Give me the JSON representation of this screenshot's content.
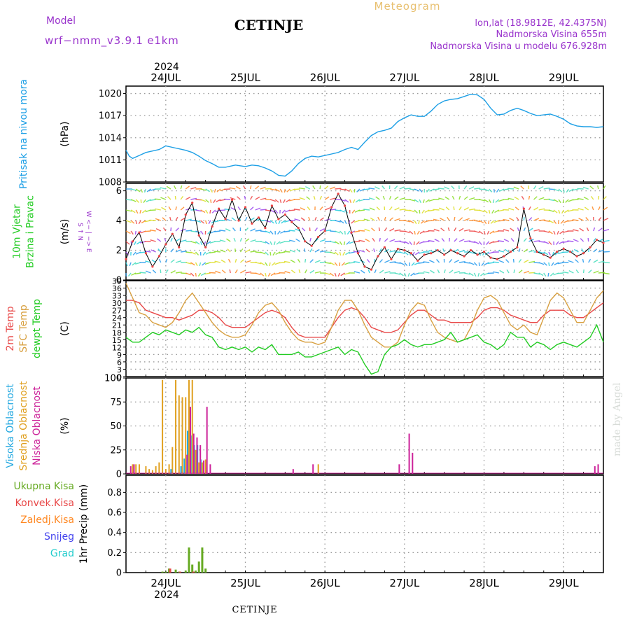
{
  "header": {
    "model_label": "Model",
    "model_value": "wrf−nmm_v3.9.1 e1km",
    "title": "CETINJE",
    "meteogram_label": "Meteogram",
    "coords": "lon,lat (18.9812E, 42.4375N)",
    "elevation": "Nadmorska Visina 655m",
    "model_elevation": "Nadmorska Visina u modelu 676.928m"
  },
  "footer": {
    "station": "CETINJE",
    "credit": "made by Angel"
  },
  "colors": {
    "pressure": "#1ea0e6",
    "t2m": "#e84848",
    "sfc": "#d8a040",
    "dewpt": "#22cc22",
    "high_cloud": "#22a8e0",
    "mid_cloud": "#e0a020",
    "low_cloud": "#cc2299",
    "total_precip": "#66aa22",
    "conv_precip": "#e84848",
    "frozen": "#ff8822",
    "snow": "#4444ee",
    "graupel": "#22cccc",
    "grid": "#999999"
  },
  "axis": {
    "year": "2024",
    "days": [
      "24JUL",
      "25JUL",
      "26JUL",
      "27JUL",
      "28JUL",
      "29JUL"
    ]
  },
  "chart_data": [
    {
      "id": "pressure",
      "type": "line",
      "title_lines": [
        "Pritisak na nivou mora"
      ],
      "unit": "(hPa)",
      "ylim": [
        1008,
        1021
      ],
      "yticks": [
        1008,
        1011,
        1014,
        1017,
        1020
      ],
      "xlim": [
        0,
        144
      ],
      "series": [
        {
          "x": [
            0,
            1,
            2,
            4,
            6,
            8,
            10,
            12,
            14,
            16,
            18,
            20,
            22,
            24,
            26,
            28,
            30,
            33,
            36,
            38,
            40,
            42,
            44,
            46,
            48,
            50,
            52,
            54,
            56,
            58,
            60,
            62,
            64,
            66,
            68,
            70,
            72,
            74,
            76,
            78,
            80,
            82,
            84,
            86,
            88,
            90,
            92,
            94,
            96,
            98,
            100,
            102,
            104,
            106,
            108,
            110,
            112,
            114,
            116,
            118,
            120,
            122,
            124,
            126,
            128,
            130,
            132,
            134,
            136,
            138,
            140,
            142,
            144
          ],
          "y": [
            1012.3,
            1011.5,
            1011.2,
            1011.6,
            1012.0,
            1012.2,
            1012.4,
            1012.9,
            1012.7,
            1012.5,
            1012.3,
            1012.0,
            1011.5,
            1010.9,
            1010.5,
            1010.0,
            1010.0,
            1010.3,
            1010.1,
            1010.3,
            1010.2,
            1009.9,
            1009.5,
            1008.9,
            1008.8,
            1009.5,
            1010.5,
            1011.2,
            1011.5,
            1011.4,
            1011.6,
            1011.8,
            1012.0,
            1012.4,
            1012.7,
            1012.4,
            1013.4,
            1014.3,
            1014.8,
            1015.0,
            1015.3,
            1016.2,
            1016.7,
            1017.1,
            1016.9,
            1016.9,
            1017.6,
            1018.5,
            1019.0,
            1019.2,
            1019.3,
            1019.6,
            1019.9,
            1019.8,
            1019.2,
            1018.0,
            1017.1,
            1017.2,
            1017.7,
            1018.0,
            1017.7,
            1017.3,
            1017.0,
            1017.1,
            1017.2,
            1016.9,
            1016.5,
            1015.9,
            1015.6,
            1015.5,
            1015.5,
            1015.4,
            1015.5
          ]
        }
      ]
    },
    {
      "id": "wind",
      "type": "line",
      "title_lines": [
        "10m Vjetar",
        "Brzina i Pravac"
      ],
      "unit": "(m/s)",
      "compass": "W <− | −> E",
      "compass_ns": "S ↑ N",
      "ylim": [
        0,
        6.5
      ],
      "yticks": [
        0,
        2,
        4,
        6
      ],
      "xlim": [
        0,
        144
      ],
      "series": [
        {
          "name": "speed",
          "x": [
            0,
            2,
            4,
            6,
            8,
            10,
            12,
            14,
            16,
            18,
            20,
            22,
            24,
            26,
            28,
            30,
            32,
            34,
            36,
            38,
            40,
            42,
            44,
            46,
            48,
            50,
            52,
            54,
            56,
            58,
            60,
            62,
            64,
            66,
            68,
            70,
            72,
            74,
            76,
            78,
            80,
            82,
            84,
            86,
            88,
            90,
            92,
            94,
            96,
            98,
            100,
            102,
            104,
            106,
            108,
            110,
            112,
            114,
            116,
            118,
            120,
            122,
            124,
            126,
            128,
            130,
            132,
            134,
            136,
            138,
            140,
            142,
            144
          ],
          "y": [
            1.4,
            2.6,
            3.2,
            1.8,
            0.9,
            1.6,
            2.4,
            3.1,
            2.2,
            4.4,
            5.2,
            3.0,
            2.2,
            3.6,
            4.8,
            4.1,
            5.4,
            4.0,
            4.9,
            3.8,
            4.2,
            3.5,
            5.0,
            4.1,
            4.4,
            3.9,
            3.5,
            2.6,
            2.3,
            2.9,
            3.3,
            4.9,
            5.8,
            5.0,
            3.2,
            1.8,
            0.9,
            0.7,
            1.6,
            2.2,
            1.4,
            2.1,
            2.0,
            1.8,
            1.3,
            1.7,
            1.8,
            2.0,
            1.7,
            2.0,
            1.8,
            1.6,
            2.0,
            1.7,
            1.9,
            1.5,
            1.4,
            1.6,
            1.9,
            2.2,
            4.8,
            2.8,
            1.9,
            1.7,
            1.5,
            1.9,
            2.1,
            1.9,
            1.6,
            1.8,
            2.2,
            2.7,
            2.5
          ]
        }
      ]
    },
    {
      "id": "temperature",
      "type": "line",
      "title_lines": [
        "2m Temp",
        "SFC Temp",
        "dewpt Temp"
      ],
      "unit": "(C)",
      "ylim": [
        0,
        39
      ],
      "yticks": [
        0,
        3,
        6,
        9,
        12,
        15,
        18,
        21,
        24,
        27,
        30,
        33,
        36,
        39
      ],
      "xlim": [
        0,
        144
      ],
      "series": [
        {
          "name": "2m Temp",
          "x": [
            0,
            2,
            4,
            6,
            8,
            10,
            12,
            14,
            16,
            18,
            20,
            22,
            24,
            26,
            28,
            30,
            32,
            34,
            36,
            38,
            40,
            42,
            44,
            46,
            48,
            50,
            52,
            54,
            56,
            58,
            60,
            62,
            64,
            66,
            68,
            70,
            72,
            74,
            76,
            78,
            80,
            82,
            84,
            86,
            88,
            90,
            92,
            94,
            96,
            98,
            100,
            102,
            104,
            106,
            108,
            110,
            112,
            114,
            116,
            118,
            120,
            122,
            124,
            126,
            128,
            130,
            132,
            134,
            136,
            138,
            140,
            142,
            144
          ],
          "y": [
            31,
            31,
            30,
            27,
            26,
            25,
            24,
            24,
            23,
            24,
            25,
            27,
            27,
            26,
            24,
            21,
            20,
            20,
            20,
            22,
            24,
            26,
            27,
            26,
            24,
            20,
            17,
            16,
            16,
            16,
            16,
            20,
            24,
            27,
            28,
            27,
            24,
            20,
            19,
            18,
            18,
            19,
            22,
            25,
            27,
            27,
            25,
            23,
            23,
            22,
            22,
            22,
            22,
            24,
            27,
            28,
            28,
            27,
            25,
            24,
            23,
            22,
            22,
            25,
            27,
            27,
            27,
            25,
            24,
            24,
            26,
            28,
            30
          ]
        },
        {
          "name": "SFC Temp",
          "x": [
            0,
            2,
            4,
            6,
            8,
            10,
            12,
            14,
            16,
            18,
            20,
            22,
            24,
            26,
            28,
            30,
            32,
            34,
            36,
            38,
            40,
            42,
            44,
            46,
            48,
            50,
            52,
            54,
            56,
            58,
            60,
            62,
            64,
            66,
            68,
            70,
            72,
            74,
            76,
            78,
            80,
            82,
            84,
            86,
            88,
            90,
            92,
            94,
            96,
            98,
            100,
            102,
            104,
            106,
            108,
            110,
            112,
            114,
            116,
            118,
            120,
            122,
            124,
            126,
            128,
            130,
            132,
            134,
            136,
            138,
            140,
            142,
            144
          ],
          "y": [
            38,
            32,
            26,
            25,
            22,
            21,
            20,
            22,
            26,
            31,
            34,
            30,
            26,
            22,
            19,
            17,
            16,
            16,
            17,
            21,
            26,
            29,
            30,
            27,
            22,
            18,
            15,
            14,
            14,
            13,
            14,
            20,
            27,
            31,
            31,
            27,
            21,
            16,
            14,
            12,
            12,
            14,
            21,
            27,
            30,
            29,
            23,
            18,
            16,
            15,
            14,
            15,
            20,
            27,
            32,
            33,
            31,
            26,
            21,
            19,
            21,
            18,
            17,
            24,
            31,
            34,
            32,
            27,
            22,
            22,
            27,
            32,
            35
          ]
        },
        {
          "name": "dewpt Temp",
          "x": [
            0,
            2,
            4,
            6,
            8,
            10,
            12,
            14,
            16,
            18,
            20,
            22,
            24,
            26,
            28,
            30,
            32,
            34,
            36,
            38,
            40,
            42,
            44,
            46,
            48,
            50,
            52,
            54,
            56,
            58,
            60,
            62,
            64,
            66,
            68,
            70,
            72,
            74,
            76,
            78,
            80,
            82,
            84,
            86,
            88,
            90,
            92,
            94,
            96,
            98,
            100,
            102,
            104,
            106,
            108,
            110,
            112,
            114,
            116,
            118,
            120,
            122,
            124,
            126,
            128,
            130,
            132,
            134,
            136,
            138,
            140,
            142,
            144
          ],
          "y": [
            16,
            14,
            14,
            16,
            18,
            17,
            19,
            18,
            17,
            19,
            18,
            20,
            17,
            16,
            12,
            11,
            12,
            11,
            12,
            10,
            12,
            11,
            13,
            9,
            9,
            9,
            10,
            8,
            8,
            9,
            10,
            11,
            12,
            9,
            11,
            10,
            5,
            1,
            2,
            9,
            12,
            13,
            15,
            13,
            12,
            13,
            13,
            14,
            15,
            18,
            14,
            15,
            16,
            17,
            14,
            13,
            11,
            13,
            18,
            16,
            16,
            12,
            14,
            13,
            11,
            13,
            14,
            13,
            12,
            14,
            16,
            21,
            14
          ]
        }
      ]
    },
    {
      "id": "cloud",
      "type": "bar",
      "title_lines": [
        "Visoka Oblacnost",
        "Srednja Oblacnost",
        "Niska Oblacnost"
      ],
      "unit": "(%)",
      "ylim": [
        0,
        100
      ],
      "yticks": [
        0,
        25,
        50,
        75,
        100
      ],
      "xlim": [
        0,
        144
      ],
      "series": [
        {
          "name": "Visoka Oblacnost",
          "x": [
            14,
            17,
            18,
            19,
            20,
            21,
            22,
            23
          ],
          "y": [
            5,
            8,
            16,
            45,
            40,
            30,
            30,
            15
          ]
        },
        {
          "name": "Srednja Oblacnost",
          "x": [
            2,
            3,
            4,
            6,
            7,
            8,
            9,
            10,
            11,
            12,
            13,
            14,
            15,
            16,
            17,
            18,
            19,
            20,
            21,
            22,
            23,
            24,
            58
          ],
          "y": [
            10,
            10,
            10,
            8,
            5,
            4,
            8,
            12,
            98,
            5,
            10,
            28,
            98,
            82,
            80,
            80,
            98,
            98,
            25,
            12,
            12,
            15,
            10
          ]
        },
        {
          "name": "Niska Oblacnost",
          "x": [
            1,
            2,
            18,
            19,
            20,
            21,
            22,
            23,
            24,
            25,
            50,
            56,
            82,
            85,
            86,
            141,
            142
          ],
          "y": [
            8,
            10,
            20,
            70,
            42,
            38,
            30,
            14,
            70,
            10,
            5,
            10,
            10,
            42,
            22,
            8,
            10
          ]
        }
      ]
    },
    {
      "id": "precip",
      "type": "bar",
      "title_lines": [
        "Ukupna Kisa",
        "Konvek.Kisa",
        "Zaledj.Kisa",
        "Snijeg",
        "Grad"
      ],
      "unit": "1hr Precip (mm)",
      "ylim": [
        0,
        0.97
      ],
      "yticks": [
        0,
        0.2,
        0.4,
        0.6,
        0.8
      ],
      "ytick_labels": [
        "0",
        "0.2",
        "0.4",
        "0.6",
        "0.8"
      ],
      "xlim": [
        0,
        144
      ],
      "series": [
        {
          "name": "Ukupna Kisa",
          "x": [
            11,
            12,
            13,
            15,
            16,
            18,
            19,
            20,
            21,
            22,
            23,
            24
          ],
          "y": [
            0.01,
            0.01,
            0.04,
            0.03,
            0.01,
            0.02,
            0.25,
            0.08,
            0.02,
            0.11,
            0.25,
            0.04
          ]
        },
        {
          "name": "Konvek.Kisa",
          "x": [
            13,
            16,
            20
          ],
          "y": [
            0.04,
            0.01,
            0.01
          ]
        }
      ]
    }
  ]
}
